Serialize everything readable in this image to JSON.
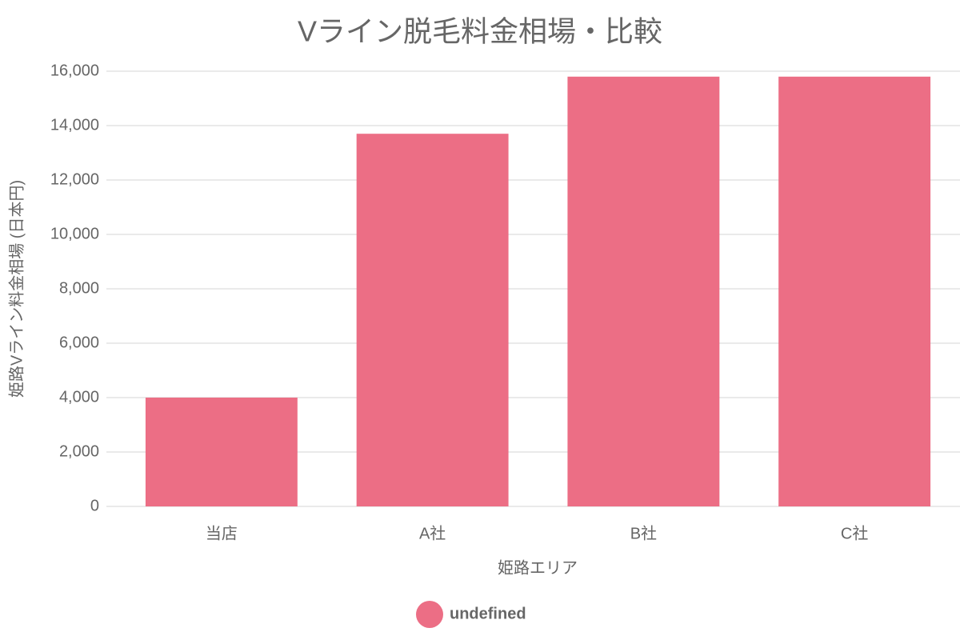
{
  "chart_data": {
    "type": "bar",
    "title": "Vライン脱毛料金相場・比較",
    "x_label": "姫路エリア",
    "y_label": "姫路Vライン料金相場 (日本円)",
    "categories": [
      "当店",
      "A社",
      "B社",
      "C社"
    ],
    "series": [
      {
        "name": "undefined",
        "color": "#ec6e85",
        "values": [
          4000,
          13700,
          15800,
          15800
        ]
      }
    ],
    "ylim": [
      0,
      16000
    ],
    "yticks": [
      0,
      {
        "value": 2000,
        "label": "2,000"
      },
      {
        "value": 4000,
        "label": "4,000"
      },
      {
        "value": 6000,
        "label": "6,000"
      },
      {
        "value": 8000,
        "label": "8,000"
      },
      {
        "value": 10000,
        "label": "10,000"
      },
      {
        "value": 12000,
        "label": "12,000"
      },
      {
        "value": 14000,
        "label": "14,000"
      },
      {
        "value": 16000,
        "label": "16,000"
      }
    ],
    "grid": true,
    "legend": "bottom"
  }
}
